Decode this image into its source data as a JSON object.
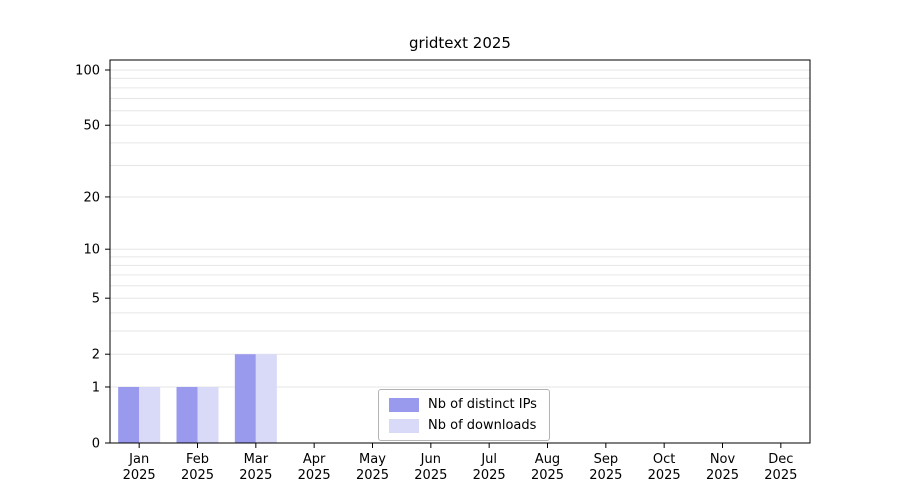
{
  "chart_data": {
    "type": "bar",
    "title": "gridtext 2025",
    "categories": [
      "Jan",
      "Feb",
      "Mar",
      "Apr",
      "May",
      "Jun",
      "Jul",
      "Aug",
      "Sep",
      "Oct",
      "Nov",
      "Dec"
    ],
    "year_label": "2025",
    "series": [
      {
        "name": "Nb of distinct IPs",
        "color": "#9999ee",
        "values": [
          1,
          1,
          2,
          0,
          0,
          0,
          0,
          0,
          0,
          0,
          0,
          0
        ]
      },
      {
        "name": "Nb of downloads",
        "color": "#d9d9f8",
        "values": [
          1,
          1,
          2,
          0,
          0,
          0,
          0,
          0,
          0,
          0,
          0,
          0
        ]
      }
    ],
    "yticks": [
      0,
      1,
      2,
      5,
      10,
      20,
      50,
      100
    ],
    "ylim": [
      0,
      100
    ],
    "scale": "log1p",
    "grid": "horizontal minor gridlines on",
    "grid_color": "#e6e6e6",
    "axis_color": "#000000",
    "legend_position": "inside bottom center"
  }
}
